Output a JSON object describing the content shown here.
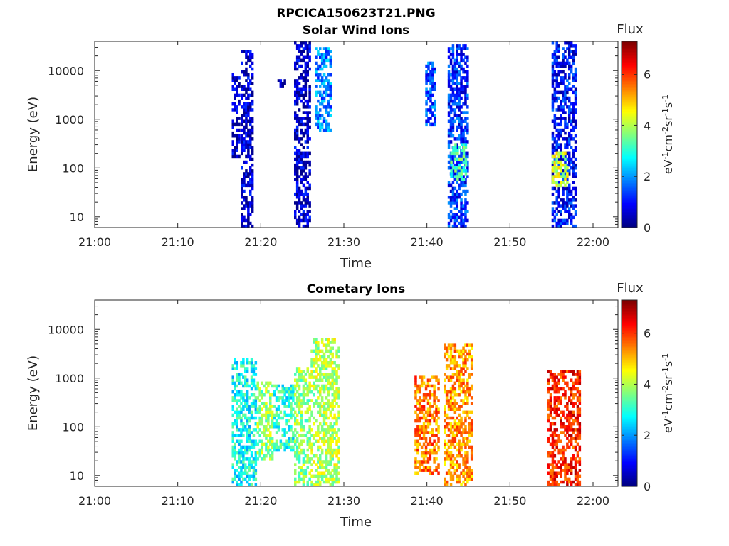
{
  "figure": {
    "title": "RPCICA150623T21.PNG"
  },
  "colors": {
    "colormap": "jet",
    "axis": "#262626",
    "background": "#ffffff"
  },
  "chart_data": [
    {
      "type": "heatmap",
      "title": "Solar Wind Ions",
      "xlabel": "Time",
      "ylabel": "Energy (eV)",
      "y_scale": "log",
      "x_range": [
        "21:00",
        "22:03"
      ],
      "y_range": [
        6,
        40000
      ],
      "x_ticks": [
        "21:00",
        "21:10",
        "21:20",
        "21:30",
        "21:40",
        "21:50",
        "22:00"
      ],
      "y_ticks": [
        "10",
        "100",
        "1000",
        "10000"
      ],
      "colorbar": {
        "title": "Flux",
        "label": "eV-1cm-2sr-1s-1",
        "range": [
          0,
          7.3
        ],
        "ticks": [
          "0",
          "2",
          "4",
          "6"
        ]
      },
      "bursts": [
        {
          "start": "21:16.5",
          "end": "21:17.5",
          "e_min": 150,
          "e_max": 8000,
          "flux": 0.4
        },
        {
          "start": "21:17.6",
          "end": "21:18.9",
          "e_min": 6,
          "e_max": 25000,
          "flux": 0.5
        },
        {
          "start": "21:22.0",
          "end": "21:23.0",
          "e_min": 4000,
          "e_max": 6000,
          "flux": 0.4
        },
        {
          "start": "21:24.0",
          "end": "21:25.8",
          "e_min": 6,
          "e_max": 40000,
          "flux": 0.5
        },
        {
          "start": "21:26.5",
          "end": "21:28.5",
          "e_min": 500,
          "e_max": 30000,
          "flux": 1.8
        },
        {
          "start": "21:39.8",
          "end": "21:41.0",
          "e_min": 700,
          "e_max": 15000,
          "flux": 1.5
        },
        {
          "start": "21:42.5",
          "end": "21:45.0",
          "e_min": 6,
          "e_max": 32000,
          "flux": 1.2
        },
        {
          "start": "21:42.8",
          "end": "21:44.8",
          "e_min": 50,
          "e_max": 300,
          "flux": 3.2
        },
        {
          "start": "21:55.0",
          "end": "21:58.0",
          "e_min": 6,
          "e_max": 40000,
          "flux": 1.0
        },
        {
          "start": "21:55.0",
          "end": "21:57.0",
          "e_min": 40,
          "e_max": 200,
          "flux": 4.2
        }
      ]
    },
    {
      "type": "heatmap",
      "title": "Cometary Ions",
      "xlabel": "Time",
      "ylabel": "Energy (eV)",
      "y_scale": "log",
      "x_range": [
        "21:00",
        "22:03"
      ],
      "y_range": [
        6,
        40000
      ],
      "x_ticks": [
        "21:00",
        "21:10",
        "21:20",
        "21:30",
        "21:40",
        "21:50",
        "22:00"
      ],
      "y_ticks": [
        "10",
        "100",
        "1000",
        "10000"
      ],
      "colorbar": {
        "title": "Flux",
        "label": "eV-1cm-2sr-1s-1",
        "range": [
          0,
          7.3
        ],
        "ticks": [
          "0",
          "2",
          "4",
          "6"
        ]
      },
      "bursts": [
        {
          "start": "21:16.5",
          "end": "21:19.5",
          "e_min": 6,
          "e_max": 2500,
          "flux": 2.8
        },
        {
          "start": "21:19.5",
          "end": "21:21.5",
          "e_min": 20,
          "e_max": 800,
          "flux": 3.8
        },
        {
          "start": "21:21.5",
          "end": "21:24.0",
          "e_min": 30,
          "e_max": 700,
          "flux": 3.0
        },
        {
          "start": "21:24.0",
          "end": "21:26.0",
          "e_min": 6,
          "e_max": 1500,
          "flux": 3.8
        },
        {
          "start": "21:26.0",
          "end": "21:29.5",
          "e_min": 6,
          "e_max": 6000,
          "flux": 4.0
        },
        {
          "start": "21:38.5",
          "end": "21:41.5",
          "e_min": 10,
          "e_max": 1000,
          "flux": 5.5
        },
        {
          "start": "21:42.0",
          "end": "21:45.5",
          "e_min": 6,
          "e_max": 4500,
          "flux": 5.3
        },
        {
          "start": "21:54.5",
          "end": "21:58.5",
          "e_min": 6,
          "e_max": 1300,
          "flux": 6.2
        }
      ]
    }
  ],
  "panels": [
    {
      "title": "Solar Wind Ions",
      "xlabel": "Time",
      "ylabel": "Energy (eV)",
      "cb_title": "Flux",
      "cb_label": "eV-1cm-2sr-1s-1"
    },
    {
      "title": "Cometary Ions",
      "xlabel": "Time",
      "ylabel": "Energy (eV)",
      "cb_title": "Flux",
      "cb_label": "eV-1cm-2sr-1s-1"
    }
  ]
}
